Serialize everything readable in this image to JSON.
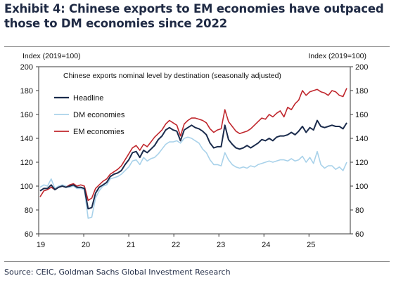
{
  "header": {
    "title": "Exhibit 4: Chinese exports to EM economies have outpaced those to DM economies since 2022"
  },
  "footer": {
    "source": "Source: CEIC, Goldman Sachs Global Investment Research"
  },
  "chart_data": {
    "type": "line",
    "title": "Chinese exports nominal level by destination (seasonally adjusted)",
    "ylabel_left": "Index (2019=100)",
    "ylabel_right": "Index (2019=100)",
    "ylim": [
      60,
      200
    ],
    "yticks": [
      60,
      80,
      100,
      120,
      140,
      160,
      180,
      200
    ],
    "x_tick_labels": [
      "19",
      "20",
      "21",
      "22",
      "23",
      "24",
      "25"
    ],
    "x_start": "2019-01",
    "x_end": "2025-11",
    "legend": "top-left, inside plot",
    "grid": false,
    "series": [
      {
        "name": "Headline",
        "color": "#1a2b4c",
        "values": [
          96,
          98,
          98,
          101,
          97,
          99,
          100,
          99,
          100,
          101,
          99,
          99,
          98,
          81,
          82,
          94,
          99,
          101,
          103,
          108,
          110,
          111,
          113,
          118,
          122,
          128,
          129,
          124,
          130,
          128,
          131,
          134,
          139,
          142,
          147,
          149,
          147,
          146,
          138,
          147,
          149,
          151,
          149,
          148,
          146,
          143,
          136,
          132,
          133,
          133,
          151,
          139,
          135,
          132,
          131,
          132,
          134,
          132,
          134,
          136,
          139,
          138,
          140,
          138,
          141,
          142,
          142,
          143,
          145,
          143,
          146,
          150,
          145,
          149,
          147,
          155,
          150,
          149,
          150,
          151,
          150,
          150,
          148,
          153
        ],
        "note": "values approximate monthly index readings"
      },
      {
        "name": "DM economies",
        "color": "#a9d2ea",
        "values": [
          99,
          101,
          100,
          106,
          98,
          100,
          101,
          100,
          99,
          100,
          98,
          98,
          97,
          73,
          74,
          90,
          96,
          100,
          101,
          106,
          107,
          108,
          110,
          113,
          116,
          121,
          122,
          118,
          124,
          121,
          123,
          124,
          127,
          131,
          135,
          137,
          137,
          138,
          136,
          140,
          141,
          140,
          138,
          136,
          131,
          128,
          122,
          118,
          118,
          117,
          128,
          122,
          118,
          116,
          115,
          116,
          115,
          117,
          116,
          118,
          119,
          120,
          121,
          120,
          121,
          122,
          122,
          121,
          123,
          121,
          122,
          125,
          120,
          124,
          119,
          129,
          118,
          115,
          117,
          117,
          114,
          116,
          113,
          120
        ]
      },
      {
        "name": "EM economies",
        "color": "#c0272d",
        "values": [
          91,
          96,
          97,
          99,
          97,
          99,
          100,
          99,
          101,
          102,
          100,
          101,
          100,
          88,
          90,
          98,
          101,
          104,
          106,
          110,
          112,
          114,
          117,
          122,
          127,
          132,
          134,
          130,
          135,
          133,
          137,
          141,
          144,
          147,
          152,
          155,
          153,
          151,
          142,
          152,
          155,
          157,
          157,
          156,
          155,
          153,
          148,
          145,
          147,
          148,
          164,
          154,
          150,
          146,
          144,
          145,
          146,
          148,
          151,
          154,
          157,
          156,
          160,
          158,
          161,
          163,
          158,
          166,
          164,
          169,
          172,
          180,
          176,
          179,
          180,
          181,
          179,
          178,
          176,
          180,
          179,
          176,
          175,
          182
        ]
      }
    ]
  }
}
